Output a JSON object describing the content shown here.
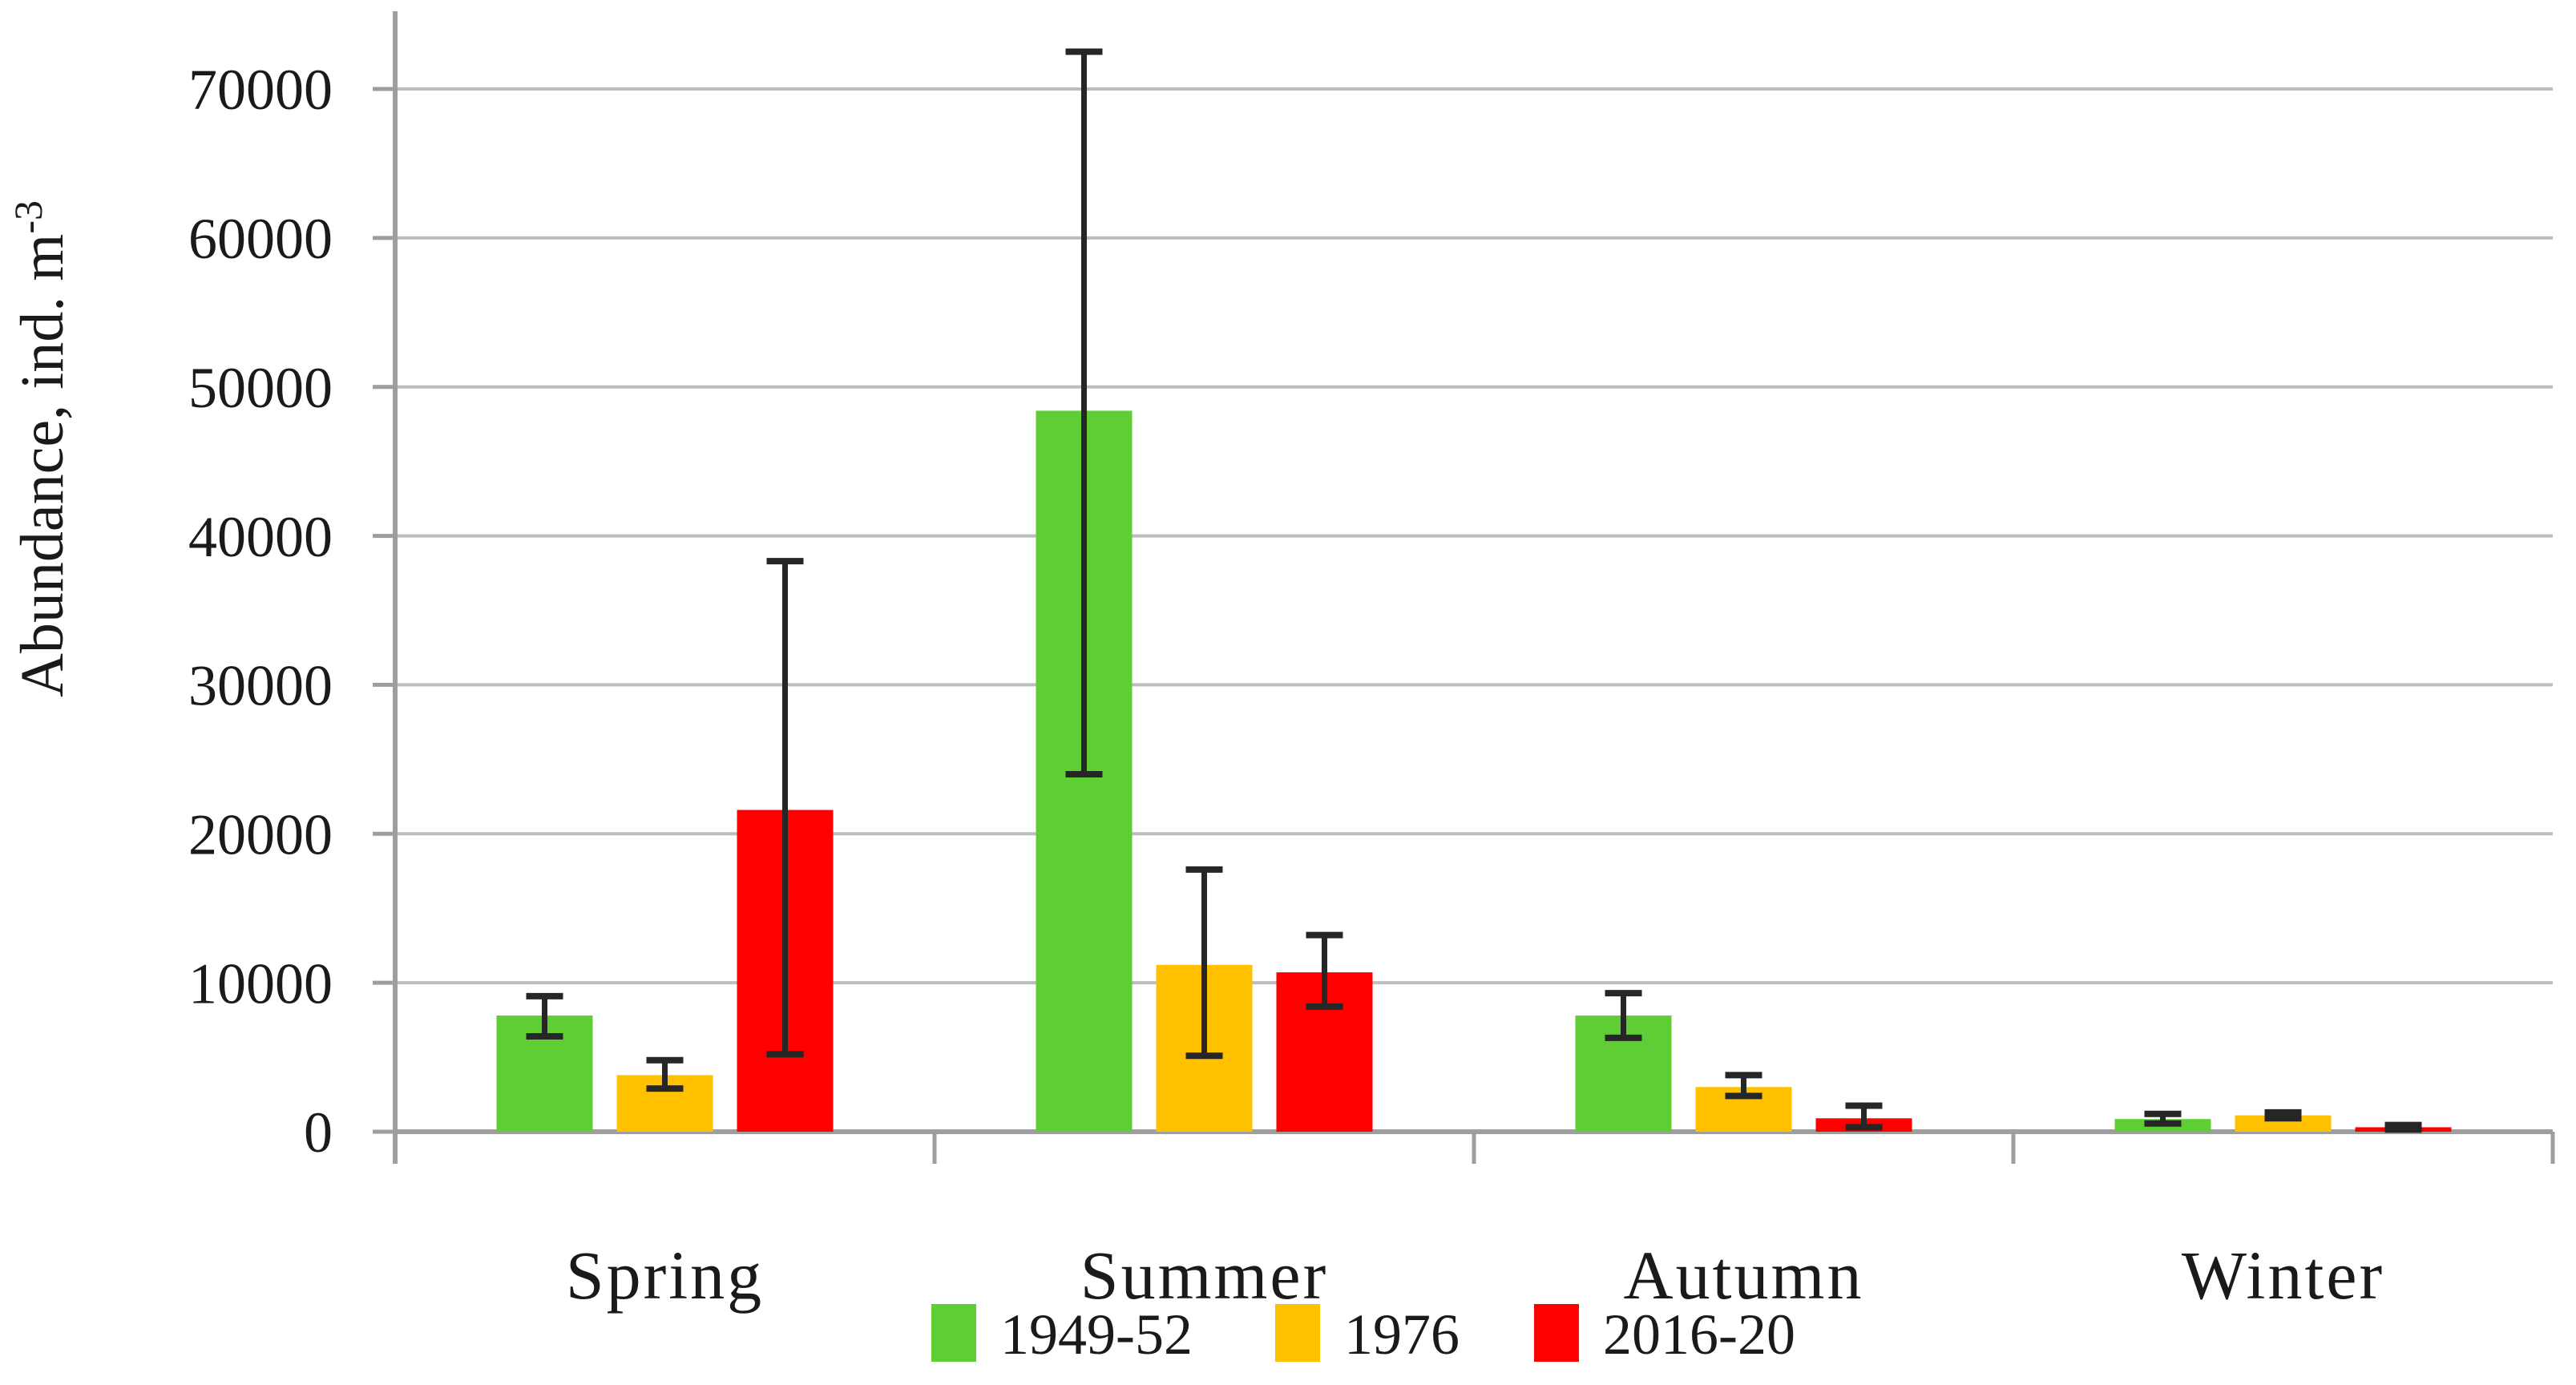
{
  "figure": {
    "background": "#FFFFFF"
  },
  "chart_data": {
    "type": "bar",
    "title": "",
    "ylabel": {
      "text": "Abundance, ind. m",
      "superscript": "-3"
    },
    "xlabel": "",
    "categories": [
      "Spring",
      "Summer",
      "Autumn",
      "Winter"
    ],
    "y_ticks": [
      0,
      10000,
      20000,
      30000,
      40000,
      50000,
      60000,
      70000
    ],
    "ylim": [
      0,
      70000
    ],
    "grid": true,
    "legend_position": "bottom",
    "series": [
      {
        "name": "1949-52",
        "color": "#5FCE35",
        "values": [
          7800,
          48400,
          7800,
          850
        ],
        "err_low": [
          6400,
          24000,
          6300,
          550
        ],
        "err_high": [
          9100,
          72500,
          9300,
          1200
        ]
      },
      {
        "name": "1976",
        "color": "#FFC000",
        "values": [
          3800,
          11200,
          3000,
          1100
        ],
        "err_low": [
          2900,
          5100,
          2400,
          900
        ],
        "err_high": [
          4800,
          17600,
          3800,
          1300
        ]
      },
      {
        "name": "2016-20",
        "color": "#FF0000",
        "values": [
          21600,
          10700,
          900,
          300
        ],
        "err_low": [
          5200,
          8400,
          300,
          150
        ],
        "err_high": [
          38300,
          13200,
          1750,
          450
        ]
      }
    ],
    "colors": {
      "gridline": "#BDBDBD",
      "axis": "#9E9E9E",
      "error_bar": "#262626",
      "text": "#1A1A1A"
    }
  }
}
